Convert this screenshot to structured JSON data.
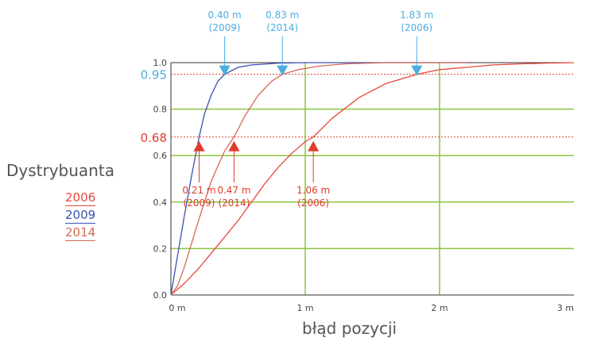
{
  "chart_data": {
    "type": "line",
    "ylabel": "Dystrybuanta",
    "xlabel": "błąd pozycji",
    "xlim": [
      0,
      3
    ],
    "ylim": [
      0,
      1
    ],
    "x_ticks": [
      {
        "value": 0,
        "label": "0 m"
      },
      {
        "value": 1,
        "label": "1 m"
      },
      {
        "value": 2,
        "label": "2 m"
      },
      {
        "value": 3,
        "label": "3 m"
      }
    ],
    "y_ticks": [
      {
        "value": 0,
        "label": "0.0"
      },
      {
        "value": 0.2,
        "label": "0.2"
      },
      {
        "value": 0.4,
        "label": "0.4"
      },
      {
        "value": 0.6,
        "label": "0.6"
      },
      {
        "value": 0.8,
        "label": "0.8"
      },
      {
        "value": 1.0,
        "label": "1.0"
      }
    ],
    "reference_lines": [
      {
        "value": 0.95,
        "label": "0.95",
        "color": "#4aaee0"
      },
      {
        "value": 0.68,
        "label": "0.68",
        "color": "#e03c2c"
      }
    ],
    "grid": true,
    "series": [
      {
        "name": "2006",
        "color": "#e8473a",
        "x": [
          0,
          0.1,
          0.2,
          0.3,
          0.4,
          0.5,
          0.6,
          0.7,
          0.8,
          0.9,
          1.0,
          1.06,
          1.2,
          1.4,
          1.6,
          1.83,
          2.0,
          2.2,
          2.4,
          2.6,
          2.8,
          3.0
        ],
        "y": [
          0,
          0.05,
          0.11,
          0.18,
          0.25,
          0.32,
          0.4,
          0.48,
          0.55,
          0.61,
          0.66,
          0.68,
          0.76,
          0.85,
          0.91,
          0.95,
          0.97,
          0.98,
          0.99,
          0.995,
          0.998,
          1.0
        ]
      },
      {
        "name": "2009",
        "color": "#3c4fb0",
        "x": [
          0,
          0.05,
          0.1,
          0.15,
          0.21,
          0.25,
          0.3,
          0.35,
          0.4,
          0.5,
          0.6,
          0.8,
          1.0,
          1.5,
          2.2
        ],
        "y": [
          0,
          0.17,
          0.34,
          0.5,
          0.68,
          0.78,
          0.86,
          0.92,
          0.95,
          0.98,
          0.99,
          0.998,
          1.0,
          1.0,
          1.0
        ]
      },
      {
        "name": "2014",
        "color": "#d36a52",
        "x": [
          0,
          0.05,
          0.1,
          0.2,
          0.3,
          0.4,
          0.47,
          0.55,
          0.65,
          0.75,
          0.83,
          0.95,
          1.1,
          1.3,
          1.6,
          2.0,
          2.2
        ],
        "y": [
          0,
          0.04,
          0.12,
          0.31,
          0.49,
          0.62,
          0.68,
          0.77,
          0.86,
          0.92,
          0.95,
          0.97,
          0.985,
          0.995,
          1.0,
          1.0,
          1.0
        ]
      }
    ],
    "annotations": [
      {
        "series": "2009",
        "x": 0.4,
        "y": 0.95,
        "text": "0.40 m",
        "sub": "(2009)",
        "direction": "down",
        "color": "#4aaee0"
      },
      {
        "series": "2014",
        "x": 0.83,
        "y": 0.95,
        "text": "0.83 m",
        "sub": "(2014)",
        "direction": "down",
        "color": "#4aaee0"
      },
      {
        "series": "2006",
        "x": 1.83,
        "y": 0.95,
        "text": "1.83 m",
        "sub": "(2006)",
        "direction": "down",
        "color": "#4aaee0"
      },
      {
        "series": "2009",
        "x": 0.21,
        "y": 0.68,
        "text": "0.21 m",
        "sub": "(2009)",
        "direction": "up",
        "color": "#e03c2c"
      },
      {
        "series": "2014",
        "x": 0.47,
        "y": 0.68,
        "text": "0.47 m",
        "sub": "(2014)",
        "direction": "up",
        "color": "#e03c2c"
      },
      {
        "series": "2006",
        "x": 1.06,
        "y": 0.68,
        "text": "1.06 m",
        "sub": "(2006)",
        "direction": "up",
        "color": "#e03c2c"
      }
    ]
  }
}
